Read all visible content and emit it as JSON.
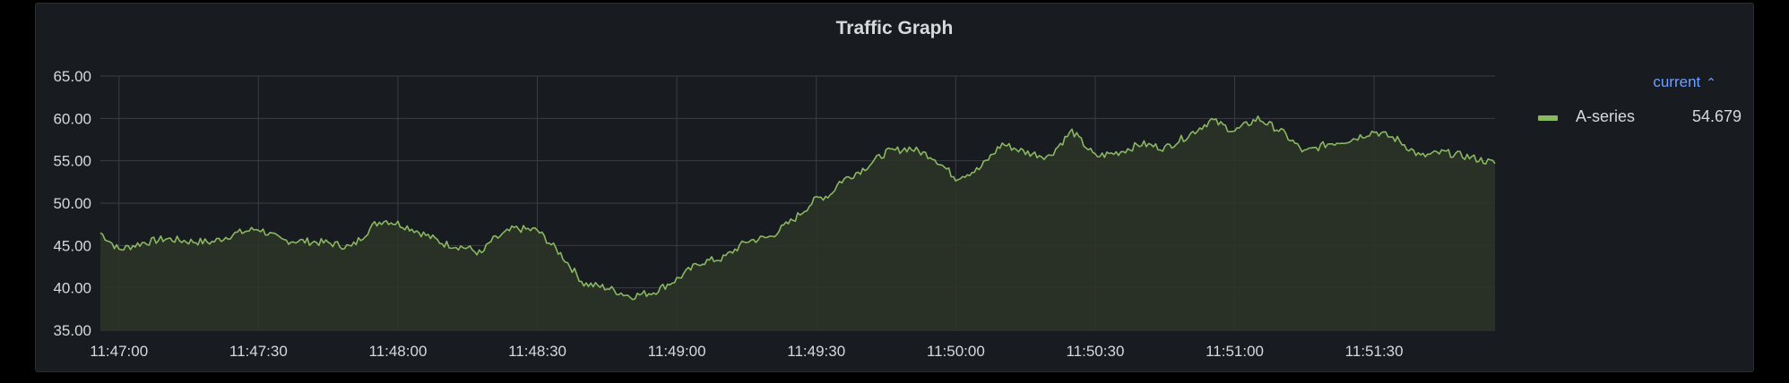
{
  "panel": {
    "title": "Traffic Graph"
  },
  "legend": {
    "header": "current",
    "header_icon": "chevron-up-icon",
    "items": [
      {
        "name": "A-series",
        "value": "54.679",
        "color": "#8ab862"
      }
    ]
  },
  "colors": {
    "background": "#181b1f",
    "grid": "#3a3d42",
    "text": "#d8d9da",
    "series": "#8ab862",
    "fill": "#2d3428",
    "legend_header": "#6e9fff"
  },
  "chart_data": {
    "type": "area",
    "title": "Traffic Graph",
    "ylim": [
      35,
      65
    ],
    "y_ticks": [
      "35.00",
      "40.00",
      "45.00",
      "50.00",
      "55.00",
      "60.00",
      "65.00"
    ],
    "x_ticks": [
      "11:47:00",
      "11:47:30",
      "11:48:00",
      "11:48:30",
      "11:49:00",
      "11:49:30",
      "11:50:00",
      "11:50:30",
      "11:51:00",
      "11:51:30"
    ],
    "x_tick_seconds": [
      0,
      30,
      60,
      90,
      120,
      150,
      180,
      210,
      240,
      270
    ],
    "x_range_seconds": [
      -4,
      296
    ],
    "grid": true,
    "legend_position": "right",
    "series": [
      {
        "name": "A-series",
        "current": 54.679,
        "points_seconds": [
          -4,
          0,
          5,
          10,
          15,
          20,
          25,
          30,
          35,
          40,
          45,
          50,
          55,
          57,
          60,
          63,
          70,
          75,
          78,
          80,
          85,
          90,
          95,
          100,
          105,
          110,
          115,
          120,
          125,
          130,
          135,
          140,
          145,
          150,
          153,
          155,
          160,
          165,
          170,
          175,
          180,
          185,
          190,
          195,
          200,
          205,
          210,
          215,
          220,
          225,
          230,
          235,
          240,
          245,
          250,
          255,
          260,
          265,
          270,
          275,
          280,
          285,
          290,
          296
        ],
        "values": [
          46.5,
          44.5,
          45.3,
          45.8,
          45.5,
          45.4,
          46.4,
          47.0,
          45.6,
          45.5,
          45.3,
          44.8,
          47.5,
          48.0,
          47.6,
          47.0,
          45.2,
          44.7,
          44.0,
          45.5,
          47.0,
          46.8,
          44.0,
          40.5,
          40.0,
          39.0,
          39.5,
          41.0,
          43.0,
          43.5,
          45.5,
          46.0,
          48.0,
          50.5,
          51.0,
          52.5,
          54.0,
          56.0,
          56.5,
          55.5,
          53.0,
          54.0,
          57.0,
          56.0,
          55.5,
          58.5,
          55.5,
          56.0,
          57.0,
          56.5,
          58.0,
          59.8,
          58.5,
          60.0,
          58.5,
          56.0,
          57.0,
          57.5,
          58.5,
          57.5,
          55.5,
          56.0,
          55.5,
          54.7
        ]
      }
    ]
  }
}
